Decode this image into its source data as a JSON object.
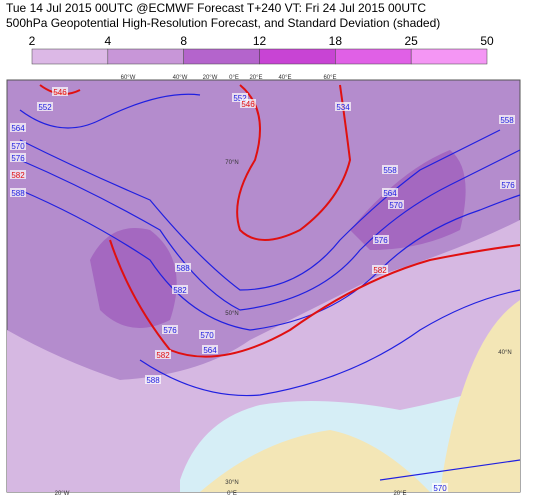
{
  "header": {
    "line1": "Tue 14 Jul 2015 00UTC @ECMWF Forecast T+240 VT: Fri 24 Jul 2015 00UTC",
    "line2": "500hPa Geopotential High-Resolution Forecast, and Standard Deviation (shaded)"
  },
  "colorbar": {
    "levels": [
      2,
      4,
      8,
      12,
      18,
      25,
      50
    ]
  },
  "contour_labels": [
    "546",
    "552",
    "564",
    "570",
    "576",
    "582",
    "588",
    "552",
    "546",
    "534",
    "558",
    "564",
    "570",
    "576",
    "582",
    "588",
    "582",
    "576",
    "570",
    "564",
    "558",
    "582",
    "588",
    "576",
    "570"
  ],
  "graticule_labels": [
    "60°W",
    "40°W",
    "20°W",
    "0°E",
    "20°E",
    "40°E",
    "60°E",
    "70°N",
    "50°N",
    "40°N",
    "30°N",
    "20°W",
    "0°E",
    "20°E"
  ]
}
